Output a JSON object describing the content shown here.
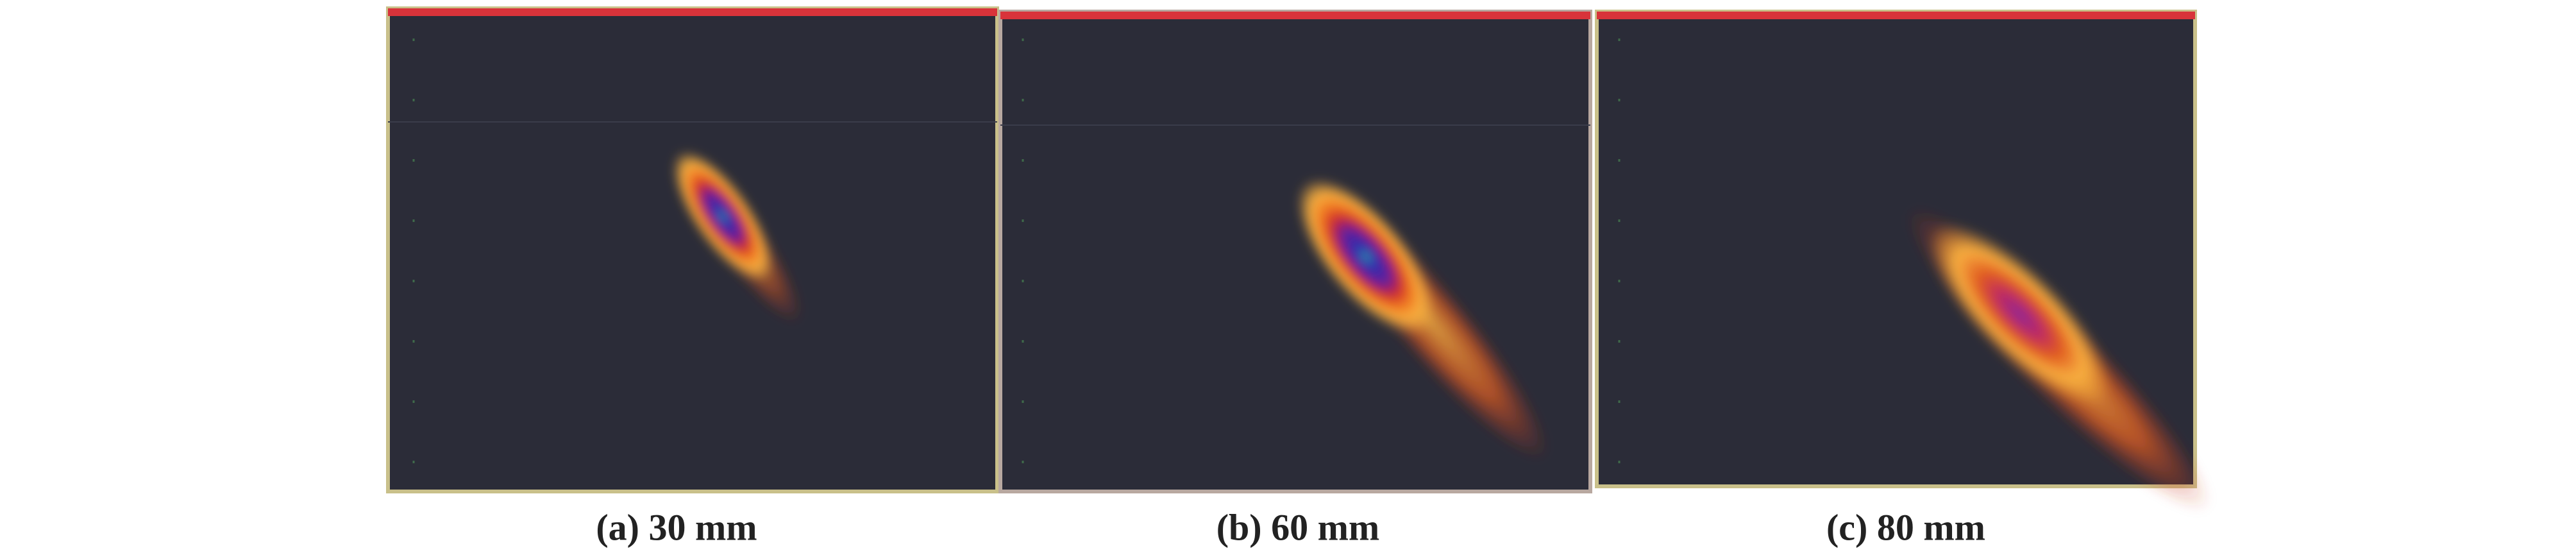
{
  "panels": [
    {
      "caption": "(a) 30 mm"
    },
    {
      "caption": "(b) 60 mm"
    },
    {
      "caption": "(c) 80 mm"
    }
  ]
}
